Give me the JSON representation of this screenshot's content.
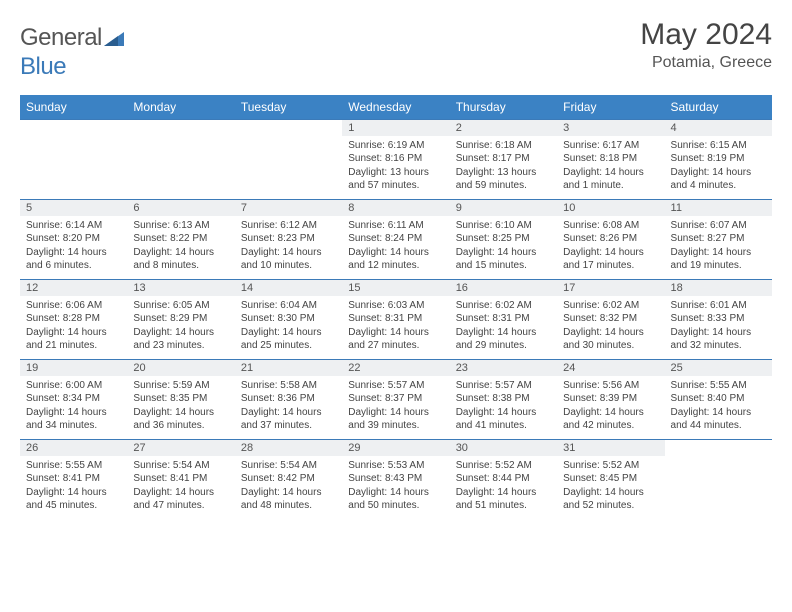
{
  "brand": {
    "name_part1": "General",
    "name_part2": "Blue"
  },
  "title": "May 2024",
  "location": "Potamia, Greece",
  "colors": {
    "header_bg": "#3b82c4",
    "accent": "#3b7ab8",
    "daynum_bg": "#eef0f2"
  },
  "weekdays": [
    "Sunday",
    "Monday",
    "Tuesday",
    "Wednesday",
    "Thursday",
    "Friday",
    "Saturday"
  ],
  "weeks": [
    {
      "nums": [
        "",
        "",
        "",
        "1",
        "2",
        "3",
        "4"
      ],
      "cells": [
        null,
        null,
        null,
        {
          "sr": "Sunrise: 6:19 AM",
          "ss": "Sunset: 8:16 PM",
          "d1": "Daylight: 13 hours",
          "d2": "and 57 minutes."
        },
        {
          "sr": "Sunrise: 6:18 AM",
          "ss": "Sunset: 8:17 PM",
          "d1": "Daylight: 13 hours",
          "d2": "and 59 minutes."
        },
        {
          "sr": "Sunrise: 6:17 AM",
          "ss": "Sunset: 8:18 PM",
          "d1": "Daylight: 14 hours",
          "d2": "and 1 minute."
        },
        {
          "sr": "Sunrise: 6:15 AM",
          "ss": "Sunset: 8:19 PM",
          "d1": "Daylight: 14 hours",
          "d2": "and 4 minutes."
        }
      ]
    },
    {
      "nums": [
        "5",
        "6",
        "7",
        "8",
        "9",
        "10",
        "11"
      ],
      "cells": [
        {
          "sr": "Sunrise: 6:14 AM",
          "ss": "Sunset: 8:20 PM",
          "d1": "Daylight: 14 hours",
          "d2": "and 6 minutes."
        },
        {
          "sr": "Sunrise: 6:13 AM",
          "ss": "Sunset: 8:22 PM",
          "d1": "Daylight: 14 hours",
          "d2": "and 8 minutes."
        },
        {
          "sr": "Sunrise: 6:12 AM",
          "ss": "Sunset: 8:23 PM",
          "d1": "Daylight: 14 hours",
          "d2": "and 10 minutes."
        },
        {
          "sr": "Sunrise: 6:11 AM",
          "ss": "Sunset: 8:24 PM",
          "d1": "Daylight: 14 hours",
          "d2": "and 12 minutes."
        },
        {
          "sr": "Sunrise: 6:10 AM",
          "ss": "Sunset: 8:25 PM",
          "d1": "Daylight: 14 hours",
          "d2": "and 15 minutes."
        },
        {
          "sr": "Sunrise: 6:08 AM",
          "ss": "Sunset: 8:26 PM",
          "d1": "Daylight: 14 hours",
          "d2": "and 17 minutes."
        },
        {
          "sr": "Sunrise: 6:07 AM",
          "ss": "Sunset: 8:27 PM",
          "d1": "Daylight: 14 hours",
          "d2": "and 19 minutes."
        }
      ]
    },
    {
      "nums": [
        "12",
        "13",
        "14",
        "15",
        "16",
        "17",
        "18"
      ],
      "cells": [
        {
          "sr": "Sunrise: 6:06 AM",
          "ss": "Sunset: 8:28 PM",
          "d1": "Daylight: 14 hours",
          "d2": "and 21 minutes."
        },
        {
          "sr": "Sunrise: 6:05 AM",
          "ss": "Sunset: 8:29 PM",
          "d1": "Daylight: 14 hours",
          "d2": "and 23 minutes."
        },
        {
          "sr": "Sunrise: 6:04 AM",
          "ss": "Sunset: 8:30 PM",
          "d1": "Daylight: 14 hours",
          "d2": "and 25 minutes."
        },
        {
          "sr": "Sunrise: 6:03 AM",
          "ss": "Sunset: 8:31 PM",
          "d1": "Daylight: 14 hours",
          "d2": "and 27 minutes."
        },
        {
          "sr": "Sunrise: 6:02 AM",
          "ss": "Sunset: 8:31 PM",
          "d1": "Daylight: 14 hours",
          "d2": "and 29 minutes."
        },
        {
          "sr": "Sunrise: 6:02 AM",
          "ss": "Sunset: 8:32 PM",
          "d1": "Daylight: 14 hours",
          "d2": "and 30 minutes."
        },
        {
          "sr": "Sunrise: 6:01 AM",
          "ss": "Sunset: 8:33 PM",
          "d1": "Daylight: 14 hours",
          "d2": "and 32 minutes."
        }
      ]
    },
    {
      "nums": [
        "19",
        "20",
        "21",
        "22",
        "23",
        "24",
        "25"
      ],
      "cells": [
        {
          "sr": "Sunrise: 6:00 AM",
          "ss": "Sunset: 8:34 PM",
          "d1": "Daylight: 14 hours",
          "d2": "and 34 minutes."
        },
        {
          "sr": "Sunrise: 5:59 AM",
          "ss": "Sunset: 8:35 PM",
          "d1": "Daylight: 14 hours",
          "d2": "and 36 minutes."
        },
        {
          "sr": "Sunrise: 5:58 AM",
          "ss": "Sunset: 8:36 PM",
          "d1": "Daylight: 14 hours",
          "d2": "and 37 minutes."
        },
        {
          "sr": "Sunrise: 5:57 AM",
          "ss": "Sunset: 8:37 PM",
          "d1": "Daylight: 14 hours",
          "d2": "and 39 minutes."
        },
        {
          "sr": "Sunrise: 5:57 AM",
          "ss": "Sunset: 8:38 PM",
          "d1": "Daylight: 14 hours",
          "d2": "and 41 minutes."
        },
        {
          "sr": "Sunrise: 5:56 AM",
          "ss": "Sunset: 8:39 PM",
          "d1": "Daylight: 14 hours",
          "d2": "and 42 minutes."
        },
        {
          "sr": "Sunrise: 5:55 AM",
          "ss": "Sunset: 8:40 PM",
          "d1": "Daylight: 14 hours",
          "d2": "and 44 minutes."
        }
      ]
    },
    {
      "nums": [
        "26",
        "27",
        "28",
        "29",
        "30",
        "31",
        ""
      ],
      "cells": [
        {
          "sr": "Sunrise: 5:55 AM",
          "ss": "Sunset: 8:41 PM",
          "d1": "Daylight: 14 hours",
          "d2": "and 45 minutes."
        },
        {
          "sr": "Sunrise: 5:54 AM",
          "ss": "Sunset: 8:41 PM",
          "d1": "Daylight: 14 hours",
          "d2": "and 47 minutes."
        },
        {
          "sr": "Sunrise: 5:54 AM",
          "ss": "Sunset: 8:42 PM",
          "d1": "Daylight: 14 hours",
          "d2": "and 48 minutes."
        },
        {
          "sr": "Sunrise: 5:53 AM",
          "ss": "Sunset: 8:43 PM",
          "d1": "Daylight: 14 hours",
          "d2": "and 50 minutes."
        },
        {
          "sr": "Sunrise: 5:52 AM",
          "ss": "Sunset: 8:44 PM",
          "d1": "Daylight: 14 hours",
          "d2": "and 51 minutes."
        },
        {
          "sr": "Sunrise: 5:52 AM",
          "ss": "Sunset: 8:45 PM",
          "d1": "Daylight: 14 hours",
          "d2": "and 52 minutes."
        },
        null
      ]
    }
  ]
}
